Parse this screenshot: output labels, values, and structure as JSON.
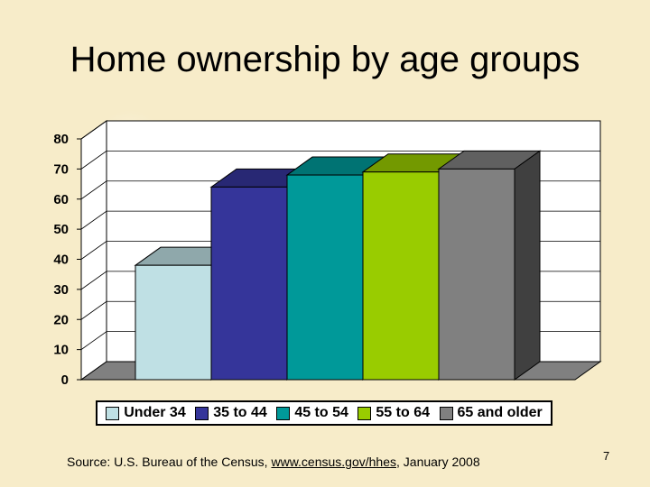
{
  "slide": {
    "title": "Home ownership by age groups",
    "source_prefix": "Source: U.S. Bureau of the Census, ",
    "source_link": "www.census.gov/hhes",
    "source_suffix": ", January 2008",
    "page_number": "7"
  },
  "chart_data": {
    "type": "bar",
    "title": "",
    "xlabel": "",
    "ylabel": "",
    "ylim": [
      0,
      80
    ],
    "yticks": [
      0,
      10,
      20,
      30,
      40,
      50,
      60,
      70,
      80
    ],
    "grid": true,
    "legend_position": "bottom",
    "series": [
      {
        "name": "Under 34",
        "value": 38,
        "color": "#bfe0e4"
      },
      {
        "name": "35 to 44",
        "value": 64,
        "color": "#35359a"
      },
      {
        "name": "45 to 54",
        "value": 68,
        "color": "#009999"
      },
      {
        "name": "55 to 64",
        "value": 69,
        "color": "#99cc00"
      },
      {
        "name": "65 and older",
        "value": 70,
        "color": "#808080"
      }
    ]
  }
}
